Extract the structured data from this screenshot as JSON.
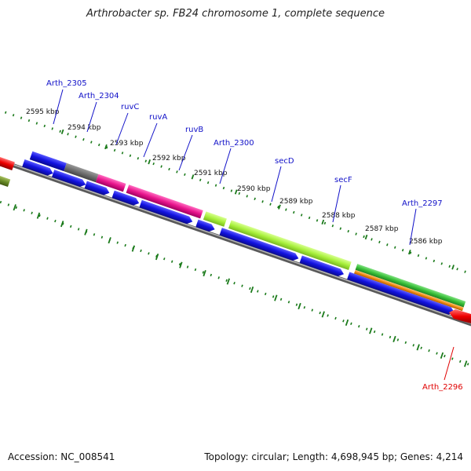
{
  "title": "Arthrobacter sp. FB24 chromosome 1, complete sequence",
  "footer": {
    "accession": "Accession: NC_008541",
    "summary": "Topology: circular; Length: 4,698,945 bp; Genes: 4,214"
  },
  "colors": {
    "label_blue": "#1010c8",
    "label_red": "#e00000",
    "backbone": "#888888",
    "tick": "#1a7a1a",
    "cds_blue": "#1212e0",
    "gray": "#6e6e6e",
    "magenta": "#e8148c",
    "lime": "#a8f03c",
    "green": "#38c038",
    "orange": "#f08c14",
    "red": "#ee0000",
    "olive": "#6a8c28"
  },
  "scale_labels": [
    "2595 kbp",
    "2594 kbp",
    "2593 kbp",
    "2592 kbp",
    "2591 kbp",
    "2590 kbp",
    "2589 kbp",
    "2588 kbp",
    "2587 kbp",
    "2586 kbp"
  ],
  "gene_labels": [
    {
      "text": "Arth_2305",
      "color": "blue"
    },
    {
      "text": "Arth_2304",
      "color": "blue"
    },
    {
      "text": "ruvC",
      "color": "blue"
    },
    {
      "text": "ruvA",
      "color": "blue"
    },
    {
      "text": "ruvB",
      "color": "blue"
    },
    {
      "text": "Arth_2300",
      "color": "blue"
    },
    {
      "text": "secD",
      "color": "blue"
    },
    {
      "text": "secF",
      "color": "blue"
    },
    {
      "text": "Arth_2297",
      "color": "blue"
    },
    {
      "text": "Arth_2296",
      "color": "red"
    }
  ]
}
